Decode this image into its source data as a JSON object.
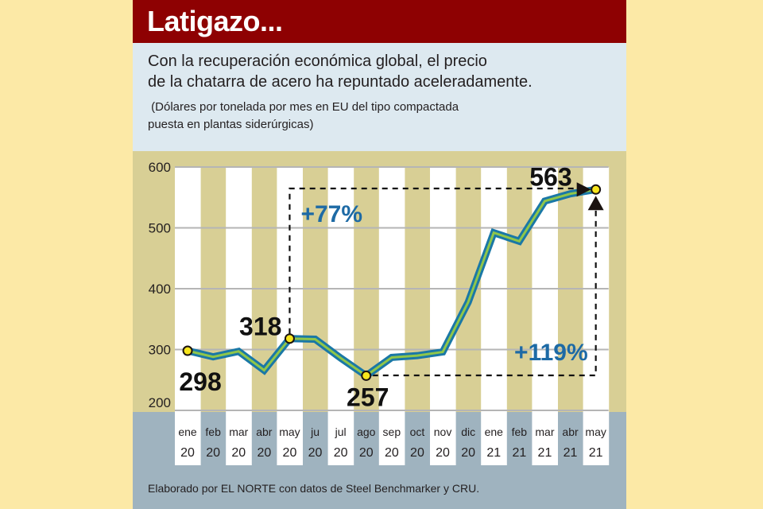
{
  "header": {
    "title": "Latigazo...",
    "subtitle_line1": "Con la recuperación económica global, el precio",
    "subtitle_line2": "de la chatarra de acero ha repuntado aceleradamente.",
    "note_line1": " (Dólares por tonelada por mes en EU del tipo compactada",
    "note_line2": "puesta en plantas siderúrgicas)"
  },
  "credit": "Elaborado por EL NORTE con datos de Steel Benchmarker y CRU.",
  "colors": {
    "header_bg": "#8e0102",
    "line_outer": "#1a78a6",
    "line_inner": "#8fc64a",
    "marker": "#f7e51d",
    "annotation_blue": "#1d6aa5",
    "tan": "#d8cf95"
  },
  "chart_data": {
    "type": "line",
    "title": "Latigazo...",
    "xlabel": "",
    "ylabel": "Dólares por tonelada",
    "ylim": [
      200,
      600
    ],
    "yticks": [
      600,
      500,
      400,
      300,
      200
    ],
    "grid": true,
    "categories": [
      {
        "month": "ene",
        "year": "20"
      },
      {
        "month": "feb",
        "year": "20"
      },
      {
        "month": "mar",
        "year": "20"
      },
      {
        "month": "abr",
        "year": "20"
      },
      {
        "month": "may",
        "year": "20"
      },
      {
        "month": "ju",
        "year": "20"
      },
      {
        "month": "jul",
        "year": "20"
      },
      {
        "month": "ago",
        "year": "20"
      },
      {
        "month": "sep",
        "year": "20"
      },
      {
        "month": "oct",
        "year": "20"
      },
      {
        "month": "nov",
        "year": "20"
      },
      {
        "month": "dic",
        "year": "20"
      },
      {
        "month": "ene",
        "year": "21"
      },
      {
        "month": "feb",
        "year": "21"
      },
      {
        "month": "mar",
        "year": "21"
      },
      {
        "month": "abr",
        "year": "21"
      },
      {
        "month": "may",
        "year": "21"
      }
    ],
    "series": [
      {
        "name": "Precio chatarra de acero",
        "values": [
          298,
          288,
          297,
          266,
          318,
          317,
          286,
          257,
          287,
          290,
          296,
          378,
          492,
          478,
          544,
          556,
          563
        ]
      }
    ],
    "highlighted_points": [
      {
        "index": 0,
        "label": "298"
      },
      {
        "index": 4,
        "label": "318"
      },
      {
        "index": 7,
        "label": "257"
      },
      {
        "index": 16,
        "label": "563"
      }
    ],
    "annotations": [
      {
        "text": "+77%",
        "from_index": 4,
        "to_index": 16
      },
      {
        "text": "+119%",
        "from_index": 7,
        "to_index": 16
      }
    ]
  }
}
